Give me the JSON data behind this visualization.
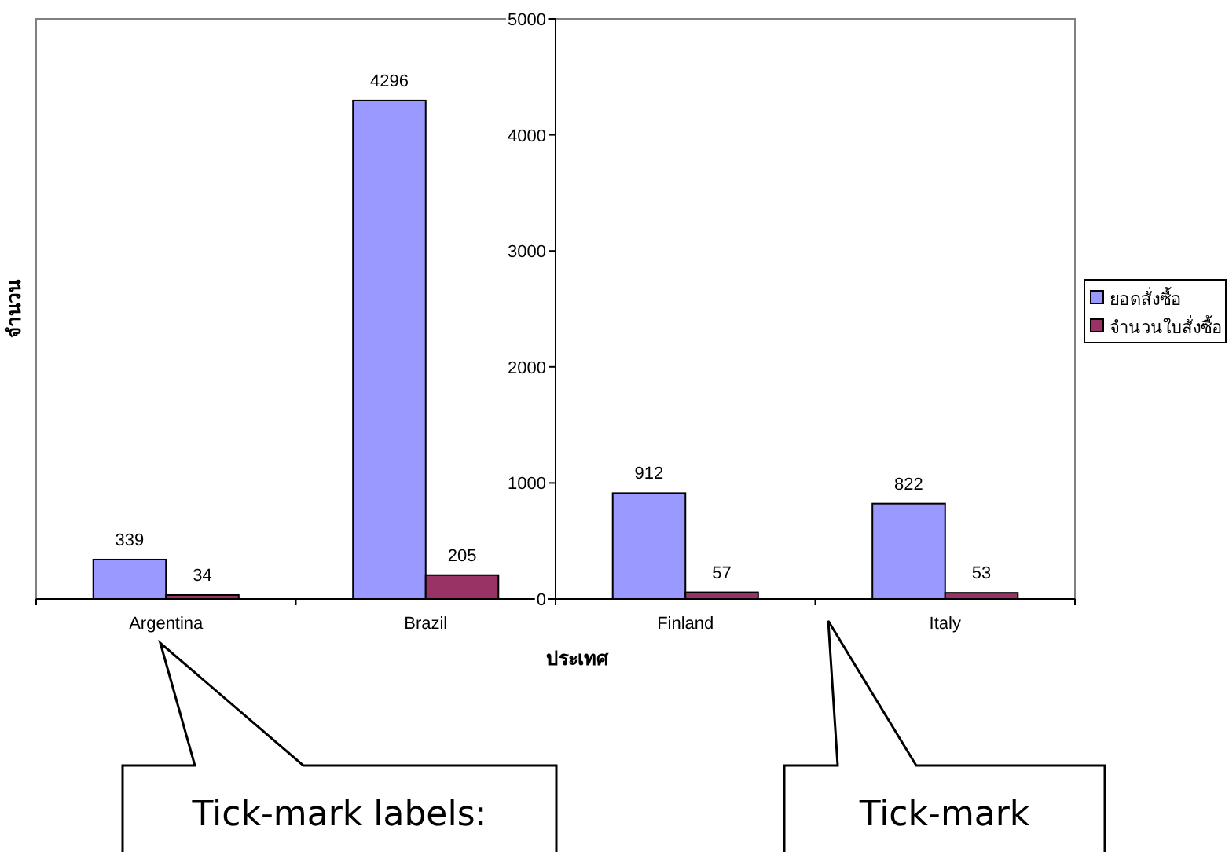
{
  "chart_data": {
    "type": "bar",
    "xlabel": "ประเทศ",
    "ylabel": "จำนวน",
    "categories": [
      "Argentina",
      "Brazil",
      "Finland",
      "Italy"
    ],
    "series": [
      {
        "name": "ยอดสั่งซื้อ",
        "color": "#9999ff",
        "values": [
          339,
          4296,
          912,
          822
        ]
      },
      {
        "name": "จำนวนใบสั่งซื้อ",
        "color": "#993366",
        "values": [
          34,
          205,
          57,
          53
        ]
      }
    ],
    "ylim": [
      0,
      5000
    ],
    "yticks": [
      0,
      1000,
      2000,
      3000,
      4000,
      5000
    ],
    "data_labels": true,
    "grid": false,
    "legend": "right",
    "annotations": [
      "Tick-mark labels:",
      "Tick-mark"
    ]
  }
}
